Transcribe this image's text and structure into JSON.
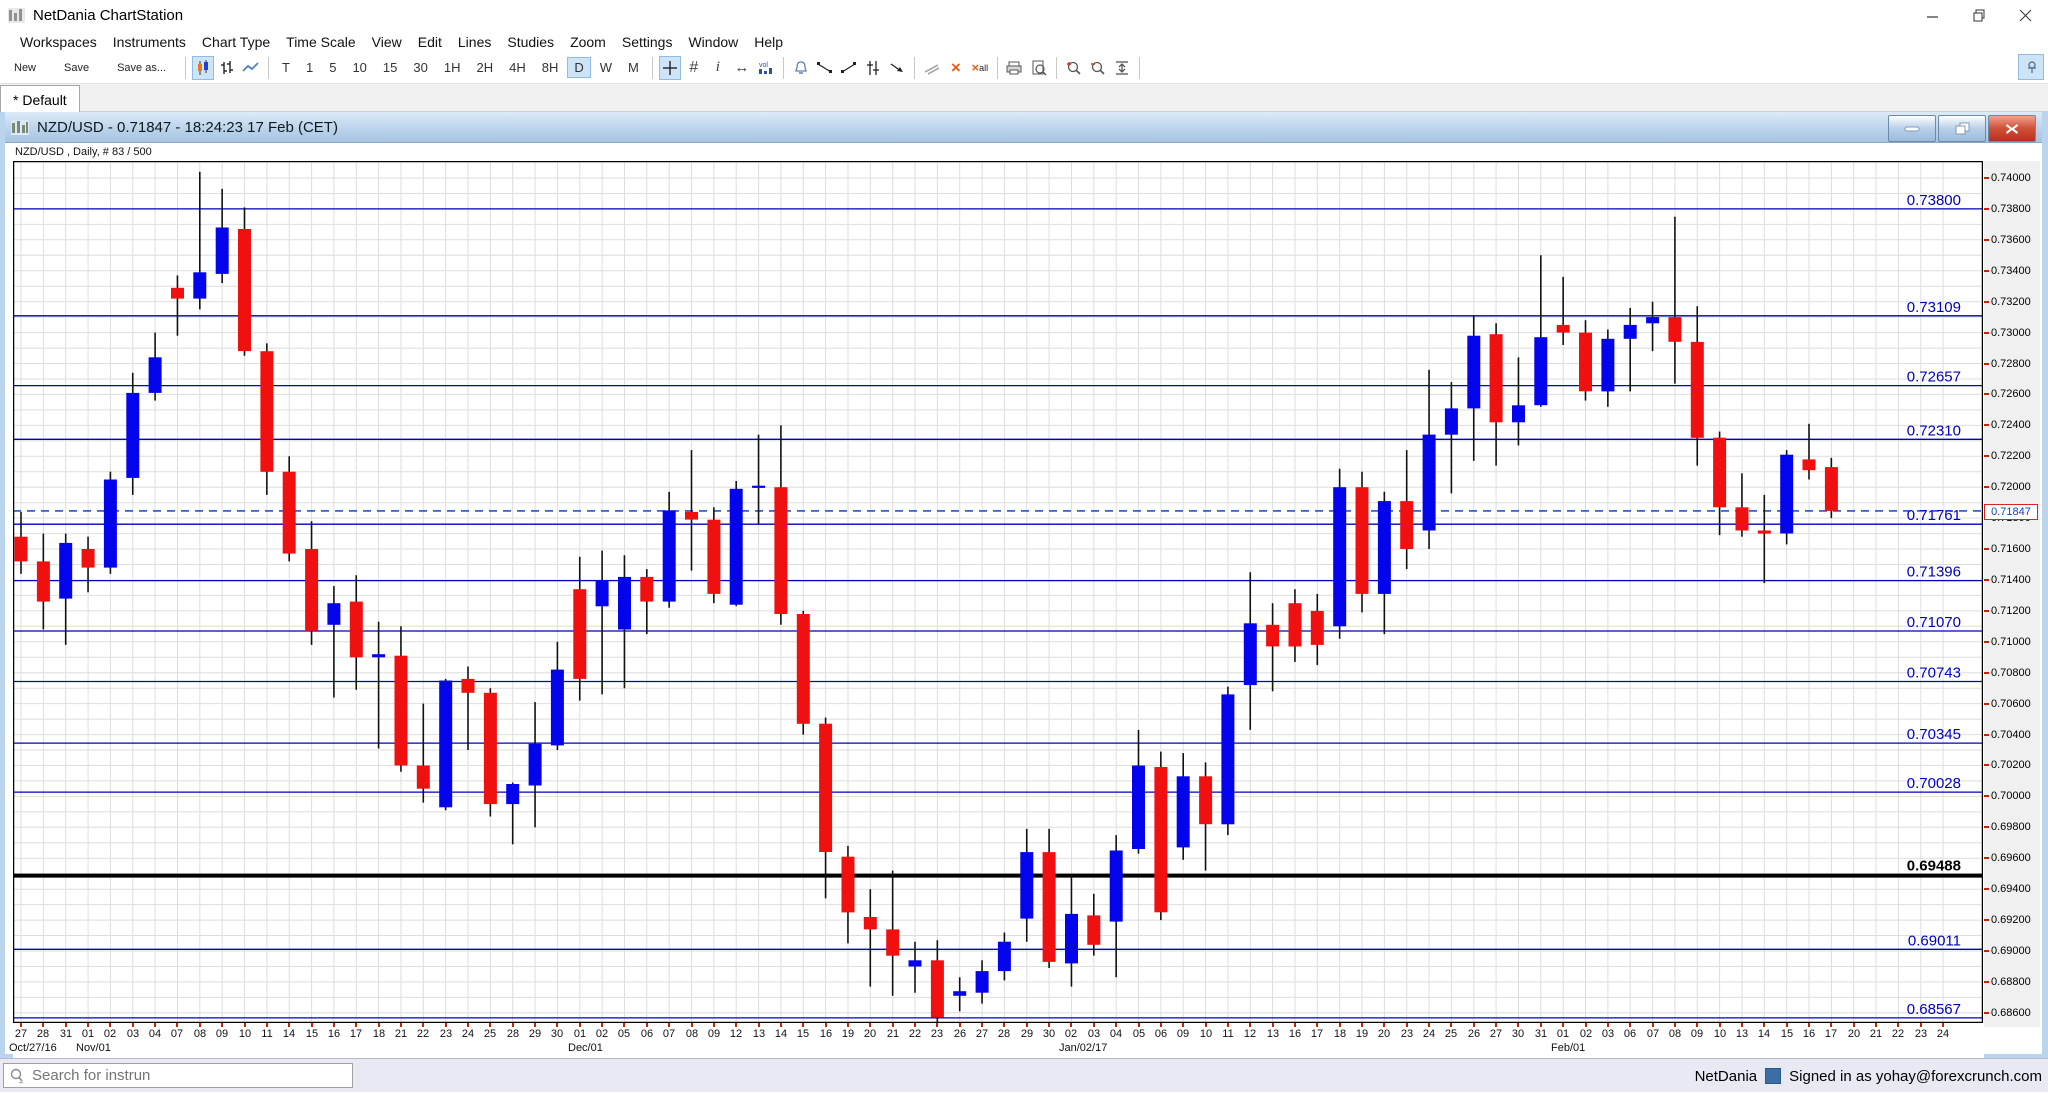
{
  "window": {
    "title": "NetDania ChartStation",
    "controls": {
      "minimize": "minimize",
      "restore": "restore",
      "close": "close"
    }
  },
  "menu_bar": {
    "items": [
      "Workspaces",
      "Instruments",
      "Chart Type",
      "Time Scale",
      "View",
      "Edit",
      "Lines",
      "Studies",
      "Zoom",
      "Settings",
      "Window",
      "Help"
    ]
  },
  "toolbar": {
    "new_label": "New",
    "save_label": "Save",
    "save_as_label": "Save as...",
    "timeframes": [
      "T",
      "1",
      "5",
      "10",
      "15",
      "30",
      "1H",
      "2H",
      "4H",
      "8H",
      "D",
      "W",
      "M"
    ],
    "active_timeframe": "D",
    "active_chart_type": "candlestick",
    "vol_label": "vol",
    "delete_all_label": "all",
    "icon_names": [
      "candlestick-chart-icon",
      "ohlc-chart-icon",
      "line-chart-icon",
      "crosshair-icon",
      "grid-icon",
      "info-icon",
      "horizontal-scale-icon",
      "volume-icon",
      "alarm-bell-icon",
      "trendline-down-icon",
      "trendline-up-icon",
      "parallel-lines-icon",
      "ray-icon",
      "angle-lines-icon",
      "delete-icon",
      "delete-all-icon",
      "print-icon",
      "print-preview-icon",
      "zoom-in-icon",
      "zoom-out-icon",
      "fit-vertical-icon",
      "pin-icon"
    ]
  },
  "tab_bar": {
    "tabs": [
      {
        "label": "* Default",
        "active": true
      }
    ]
  },
  "chart_window": {
    "title": "NZD/USD - 0.71847 - 18:24:23  17 Feb (CET)",
    "info_label": "NZD/USD , Daily, # 83 / 500"
  },
  "status_bar": {
    "search_placeholder": "Search for instrun",
    "brand": "NetDania",
    "signed_in": "Signed in as yohay@forexcrunch.com"
  },
  "chart_data": {
    "type": "candlestick",
    "symbol": "NZD/USD",
    "timeframe": "Daily",
    "current_price": 0.71847,
    "y_axis": {
      "min": 0.686,
      "max": 0.74,
      "step": 0.002,
      "decimals": 5
    },
    "grid": {
      "h_step": 0.001,
      "v_every_slot": 1
    },
    "colors": {
      "up": "#0404ec",
      "down": "#f01010",
      "wick": "#111111",
      "level": "#0000bb",
      "level_label": "#0000bb",
      "black_level": "#000000",
      "grid": "#dedede",
      "dashed": "#0030cc",
      "tick": "#cc2200"
    },
    "levels": [
      {
        "value": 0.738,
        "style": "blue"
      },
      {
        "value": 0.73109,
        "style": "blue"
      },
      {
        "value": 0.72657,
        "style": "blue"
      },
      {
        "value": 0.7231,
        "style": "blue"
      },
      {
        "value": 0.71761,
        "style": "blue"
      },
      {
        "value": 0.71396,
        "style": "blue"
      },
      {
        "value": 0.7107,
        "style": "blue"
      },
      {
        "value": 0.70743,
        "style": "blue"
      },
      {
        "value": 0.70345,
        "style": "blue"
      },
      {
        "value": 0.70028,
        "style": "blue"
      },
      {
        "value": 0.69488,
        "style": "black"
      },
      {
        "value": 0.69011,
        "style": "blue"
      },
      {
        "value": 0.68567,
        "style": "blue"
      }
    ],
    "current_price_line": {
      "value": 0.71847,
      "style": "dashed-blue"
    },
    "dates": [
      "27",
      "28",
      "31",
      "01",
      "02",
      "03",
      "04",
      "07",
      "08",
      "09",
      "10",
      "11",
      "14",
      "15",
      "16",
      "17",
      "18",
      "21",
      "22",
      "23",
      "24",
      "25",
      "28",
      "29",
      "30",
      "01",
      "02",
      "05",
      "06",
      "07",
      "08",
      "09",
      "12",
      "13",
      "14",
      "15",
      "16",
      "19",
      "20",
      "21",
      "22",
      "23",
      "26",
      "27",
      "28",
      "29",
      "30",
      "02",
      "03",
      "04",
      "05",
      "06",
      "09",
      "10",
      "11",
      "12",
      "13",
      "16",
      "17",
      "18",
      "19",
      "20",
      "23",
      "24",
      "25",
      "26",
      "27",
      "30",
      "31",
      "01",
      "02",
      "03",
      "06",
      "07",
      "08",
      "09",
      "10",
      "13",
      "14",
      "15",
      "16",
      "17",
      "20",
      "21",
      "22",
      "23",
      "24"
    ],
    "month_labels": [
      {
        "text": "Oct/27/16",
        "index": 0
      },
      {
        "text": "Nov/01",
        "index": 3
      },
      {
        "text": "Dec/01",
        "index": 25
      },
      {
        "text": "Jan/02/17",
        "index": 47
      },
      {
        "text": "Feb/01",
        "index": 69
      }
    ],
    "candles": [
      [
        "Oct 27",
        0.7168,
        0.7184,
        0.7144,
        0.7152
      ],
      [
        "Oct 28",
        0.7152,
        0.717,
        0.7108,
        0.7126
      ],
      [
        "Oct 31",
        0.7128,
        0.717,
        0.7098,
        0.7164
      ],
      [
        "Nov 01",
        0.716,
        0.7168,
        0.7132,
        0.7148
      ],
      [
        "Nov 02",
        0.7148,
        0.721,
        0.7144,
        0.7205
      ],
      [
        "Nov 03",
        0.7206,
        0.7274,
        0.7195,
        0.7261
      ],
      [
        "Nov 04",
        0.7261,
        0.73,
        0.7256,
        0.7284
      ],
      [
        "Nov 07",
        0.7329,
        0.7337,
        0.7298,
        0.7322
      ],
      [
        "Nov 08",
        0.7322,
        0.7404,
        0.7315,
        0.7339
      ],
      [
        "Nov 09",
        0.7338,
        0.7393,
        0.7332,
        0.7368
      ],
      [
        "Nov 10",
        0.7367,
        0.7381,
        0.7285,
        0.7288
      ],
      [
        "Nov 11",
        0.7288,
        0.7293,
        0.7195,
        0.721
      ],
      [
        "Nov 14",
        0.721,
        0.722,
        0.7152,
        0.7157
      ],
      [
        "Nov 15",
        0.716,
        0.7178,
        0.7098,
        0.7107
      ],
      [
        "Nov 16",
        0.7111,
        0.7136,
        0.7064,
        0.7125
      ],
      [
        "Nov 17",
        0.7126,
        0.7143,
        0.7069,
        0.709
      ],
      [
        "Nov 18",
        0.709,
        0.7113,
        0.7031,
        0.7092
      ],
      [
        "Nov 21",
        0.7091,
        0.711,
        0.7016,
        0.702
      ],
      [
        "Nov 22",
        0.702,
        0.706,
        0.6996,
        0.7005
      ],
      [
        "Nov 23",
        0.6993,
        0.7076,
        0.6991,
        0.7075
      ],
      [
        "Nov 24",
        0.7076,
        0.7084,
        0.703,
        0.7067
      ],
      [
        "Nov 25",
        0.7067,
        0.707,
        0.6987,
        0.6995
      ],
      [
        "Nov 28",
        0.6995,
        0.7009,
        0.6969,
        0.7008
      ],
      [
        "Nov 29",
        0.7007,
        0.7061,
        0.698,
        0.7034
      ],
      [
        "Nov 30",
        0.7033,
        0.71,
        0.703,
        0.7082
      ],
      [
        "Dec 01",
        0.7134,
        0.7155,
        0.7062,
        0.7076
      ],
      [
        "Dec 02",
        0.7123,
        0.7159,
        0.7066,
        0.714
      ],
      [
        "Dec 05",
        0.7108,
        0.7156,
        0.707,
        0.7142
      ],
      [
        "Dec 06",
        0.7142,
        0.7147,
        0.7105,
        0.7126
      ],
      [
        "Dec 07",
        0.7126,
        0.7197,
        0.7122,
        0.7185
      ],
      [
        "Dec 08",
        0.7184,
        0.7224,
        0.7146,
        0.7179
      ],
      [
        "Dec 09",
        0.7179,
        0.7187,
        0.7125,
        0.7131
      ],
      [
        "Dec 12",
        0.7124,
        0.7204,
        0.7123,
        0.7199
      ],
      [
        "Dec 13",
        0.72,
        0.7234,
        0.7176,
        0.7201
      ],
      [
        "Dec 14",
        0.72,
        0.724,
        0.7111,
        0.7118
      ],
      [
        "Dec 15",
        0.7118,
        0.712,
        0.704,
        0.7047
      ],
      [
        "Dec 16",
        0.7047,
        0.7051,
        0.6934,
        0.6964
      ],
      [
        "Dec 19",
        0.6961,
        0.6968,
        0.6905,
        0.6925
      ],
      [
        "Dec 20",
        0.6922,
        0.694,
        0.6877,
        0.6914
      ],
      [
        "Dec 21",
        0.6914,
        0.6952,
        0.6871,
        0.6897
      ],
      [
        "Dec 22",
        0.689,
        0.6906,
        0.6873,
        0.6894
      ],
      [
        "Dec 23",
        0.6894,
        0.6907,
        0.6854,
        0.6857
      ],
      [
        "Dec 26",
        0.6871,
        0.6883,
        0.6861,
        0.6874
      ],
      [
        "Dec 27",
        0.6873,
        0.6894,
        0.6866,
        0.6887
      ],
      [
        "Dec 28",
        0.6887,
        0.6912,
        0.6881,
        0.6906
      ],
      [
        "Dec 29",
        0.6921,
        0.6979,
        0.6906,
        0.6964
      ],
      [
        "Dec 30",
        0.6964,
        0.6979,
        0.6889,
        0.6893
      ],
      [
        "Jan 02",
        0.6892,
        0.6949,
        0.6877,
        0.6924
      ],
      [
        "Jan 03",
        0.6923,
        0.6937,
        0.6897,
        0.6904
      ],
      [
        "Jan 04",
        0.6919,
        0.6975,
        0.6883,
        0.6965
      ],
      [
        "Jan 05",
        0.6966,
        0.7043,
        0.6963,
        0.702
      ],
      [
        "Jan 06",
        0.7019,
        0.7029,
        0.692,
        0.6925
      ],
      [
        "Jan 09",
        0.6967,
        0.7028,
        0.6959,
        0.7013
      ],
      [
        "Jan 10",
        0.7013,
        0.7022,
        0.6952,
        0.6982
      ],
      [
        "Jan 11",
        0.6982,
        0.7071,
        0.6975,
        0.7066
      ],
      [
        "Jan 12",
        0.7072,
        0.7145,
        0.7043,
        0.7112
      ],
      [
        "Jan 13",
        0.7111,
        0.7125,
        0.7068,
        0.7097
      ],
      [
        "Jan 16",
        0.7125,
        0.7134,
        0.7087,
        0.7097
      ],
      [
        "Jan 17",
        0.712,
        0.7131,
        0.7085,
        0.7098
      ],
      [
        "Jan 18",
        0.711,
        0.7212,
        0.7102,
        0.72
      ],
      [
        "Jan 19",
        0.72,
        0.721,
        0.7119,
        0.7131
      ],
      [
        "Jan 20",
        0.7131,
        0.7197,
        0.7105,
        0.7191
      ],
      [
        "Jan 23",
        0.7191,
        0.7224,
        0.7147,
        0.716
      ],
      [
        "Jan 24",
        0.7172,
        0.7276,
        0.716,
        0.7234
      ],
      [
        "Jan 25",
        0.7234,
        0.7268,
        0.7196,
        0.7251
      ],
      [
        "Jan 26",
        0.7251,
        0.7311,
        0.7217,
        0.7298
      ],
      [
        "Jan 27",
        0.7299,
        0.7306,
        0.7214,
        0.7242
      ],
      [
        "Jan 30",
        0.7242,
        0.7284,
        0.7227,
        0.7253
      ],
      [
        "Jan 31",
        0.7253,
        0.735,
        0.7252,
        0.7297
      ],
      [
        "Feb 01",
        0.7305,
        0.7336,
        0.7292,
        0.73
      ],
      [
        "Feb 02",
        0.73,
        0.7308,
        0.7256,
        0.7262
      ],
      [
        "Feb 03",
        0.7262,
        0.7302,
        0.7252,
        0.7296
      ],
      [
        "Feb 06",
        0.7296,
        0.7316,
        0.7262,
        0.7305
      ],
      [
        "Feb 07",
        0.7306,
        0.732,
        0.7288,
        0.731
      ],
      [
        "Feb 08",
        0.731,
        0.7375,
        0.7267,
        0.7294
      ],
      [
        "Feb 09",
        0.7294,
        0.7317,
        0.7214,
        0.7232
      ],
      [
        "Feb 10",
        0.7232,
        0.7236,
        0.7169,
        0.7187
      ],
      [
        "Feb 13",
        0.7187,
        0.7209,
        0.7168,
        0.7172
      ],
      [
        "Feb 14",
        0.7172,
        0.7195,
        0.7138,
        0.717
      ],
      [
        "Feb 15",
        0.717,
        0.7224,
        0.7163,
        0.7221
      ],
      [
        "Feb 16",
        0.7218,
        0.7241,
        0.7205,
        0.7211
      ],
      [
        "Feb 17",
        0.7213,
        0.7219,
        0.718,
        0.71847
      ]
    ]
  }
}
